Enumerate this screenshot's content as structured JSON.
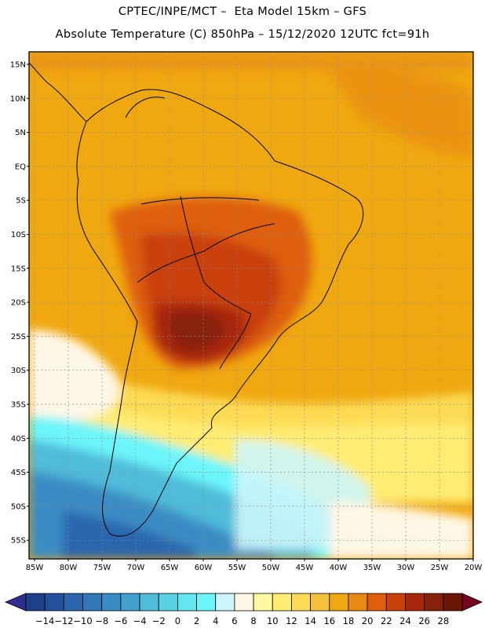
{
  "header": {
    "line1": "CPTEC/INPE/MCT –  Eta Model 15km – GFS",
    "line2": "Absolute Temperature (C) 850hPa – 15/12/2020 12UTC fct=91h"
  },
  "map": {
    "lat_labels": [
      "15N",
      "10N",
      "5N",
      "EQ",
      "5S",
      "10S",
      "15S",
      "20S",
      "25S",
      "30S",
      "35S",
      "40S",
      "45S",
      "50S",
      "55S"
    ],
    "lon_labels": [
      "85W",
      "80W",
      "75W",
      "70W",
      "65W",
      "60W",
      "55W",
      "50W",
      "45W",
      "40W",
      "35W",
      "30W",
      "25W",
      "20W"
    ],
    "lat_range": [
      -58,
      17
    ],
    "lon_range": [
      -87,
      -20
    ]
  },
  "colorbar": {
    "labels": [
      "-14",
      "-12",
      "-10",
      "-8",
      "-6",
      "-4",
      "-2",
      "0",
      "2",
      "4",
      "6",
      "8",
      "10",
      "12",
      "14",
      "16",
      "18",
      "20",
      "22",
      "24",
      "26",
      "28"
    ],
    "colors": [
      "#1f3f8a",
      "#24509c",
      "#2c66ad",
      "#3178b8",
      "#3a8cc4",
      "#43a1cf",
      "#4fbcd9",
      "#5bd2e4",
      "#62e6ef",
      "#6cf5fa",
      "#ccf5fa",
      "#fff7e6",
      "#fff9a0",
      "#ffec73",
      "#fddb55",
      "#f6c23c",
      "#f0a810",
      "#e88a12",
      "#de5e0c",
      "#c9400a",
      "#a8270a",
      "#872008",
      "#6b1606"
    ],
    "under_color": "#2d2e90",
    "over_color": "#76001f"
  }
}
